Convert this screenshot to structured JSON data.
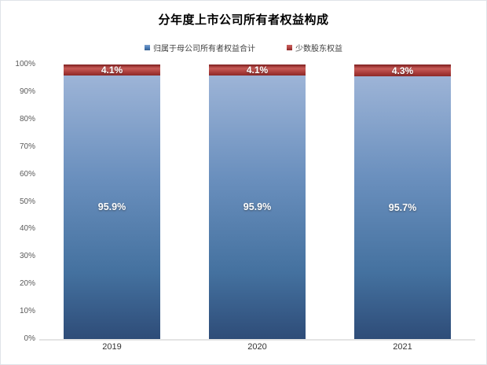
{
  "window": {
    "background": "#ffffff",
    "frame_border_color": "#dfe3e8"
  },
  "chart_data": {
    "type": "bar",
    "stacked": true,
    "percent_stacked": true,
    "title": "分年度上市公司所有者权益构成",
    "categories": [
      "2019",
      "2020",
      "2021"
    ],
    "series": [
      {
        "name": "归属于母公司所有者权益合计",
        "values": [
          95.9,
          95.9,
          95.7
        ],
        "labels": [
          "95.9%",
          "95.9%",
          "95.7%"
        ],
        "color": "#4f81bd"
      },
      {
        "name": "少数股东权益",
        "values": [
          4.1,
          4.1,
          4.3
        ],
        "labels": [
          "4.1%",
          "4.1%",
          "4.3%"
        ],
        "color": "#b94a48"
      }
    ],
    "ylabel": "",
    "xlabel": "",
    "ylim": [
      0,
      100
    ],
    "y_ticks": [
      "0%",
      "10%",
      "20%",
      "30%",
      "40%",
      "50%",
      "60%",
      "70%",
      "80%",
      "90%",
      "100%"
    ],
    "y_tick_values": [
      0,
      10,
      20,
      30,
      40,
      50,
      60,
      70,
      80,
      90,
      100
    ],
    "legend_position": "top",
    "grid": false,
    "axis_line_color": "#e4e4e4",
    "label_text_color": "#ffffff"
  }
}
